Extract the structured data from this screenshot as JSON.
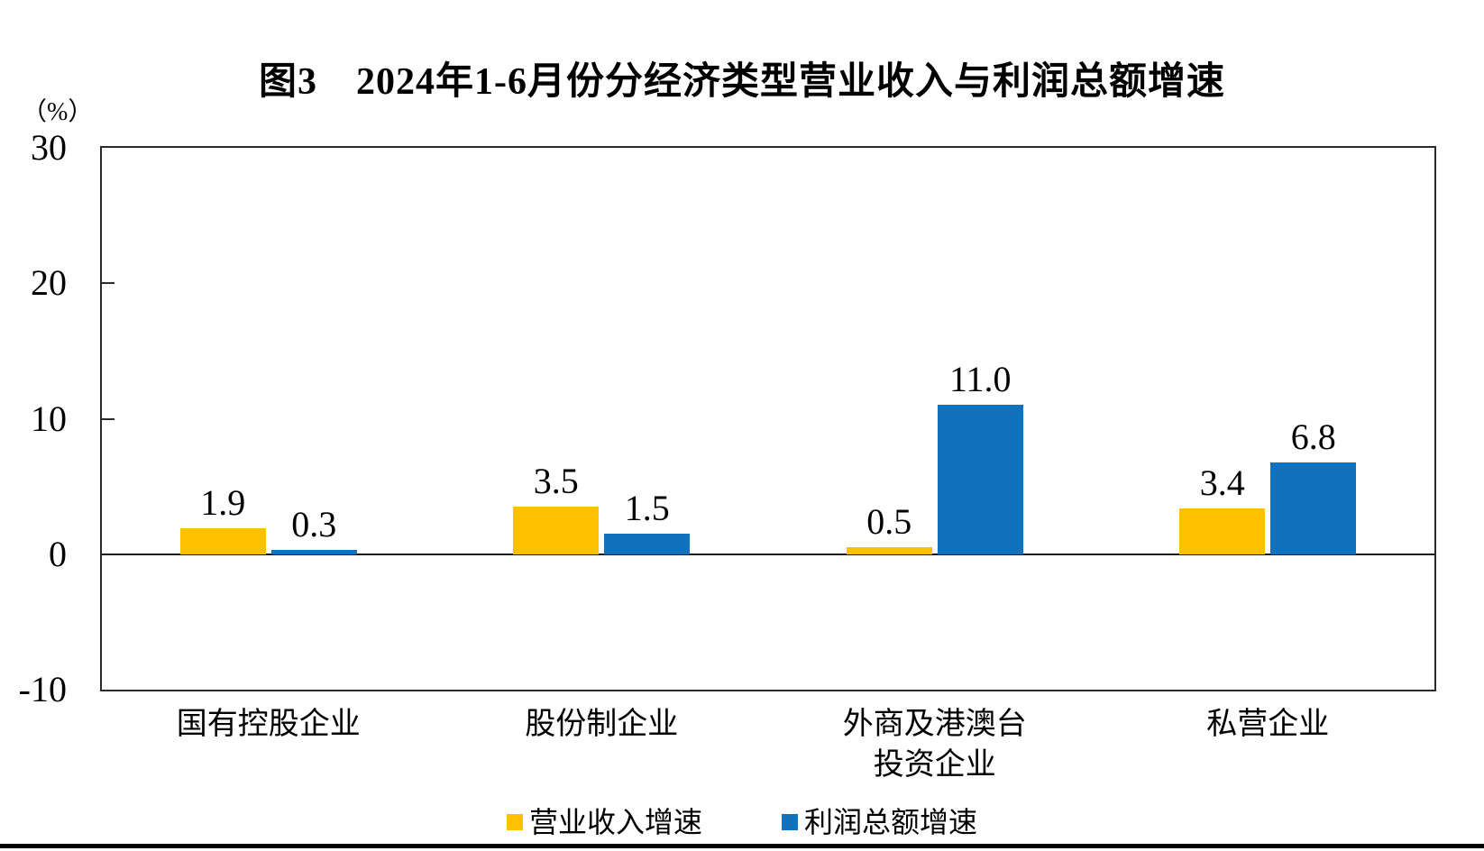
{
  "figure": {
    "title": "图3　2024年1-6月份分经济类型营业收入与利润总额增速",
    "unit_label": "（%）"
  },
  "chart_data": {
    "type": "bar",
    "title": "图3　2024年1-6月份分经济类型营业收入与利润总额增速",
    "unit": "（%）",
    "categories": [
      "国有控股企业",
      "股份制企业",
      "外商及港澳台\n投资企业",
      "私营企业"
    ],
    "series": [
      {
        "name": "营业收入增速",
        "color": "#FFC000",
        "values": [
          1.9,
          3.5,
          0.5,
          3.4
        ]
      },
      {
        "name": "利润总额增速",
        "color": "#1072BD",
        "values": [
          0.3,
          1.5,
          11.0,
          6.8
        ]
      }
    ],
    "ylim": [
      -10,
      30
    ],
    "yticks": [
      30,
      20,
      10,
      0,
      -10
    ],
    "grid": false,
    "zero_baseline": true,
    "value_labels": true,
    "legend_position": "bottom",
    "axis_color": "#2b2b2b"
  }
}
